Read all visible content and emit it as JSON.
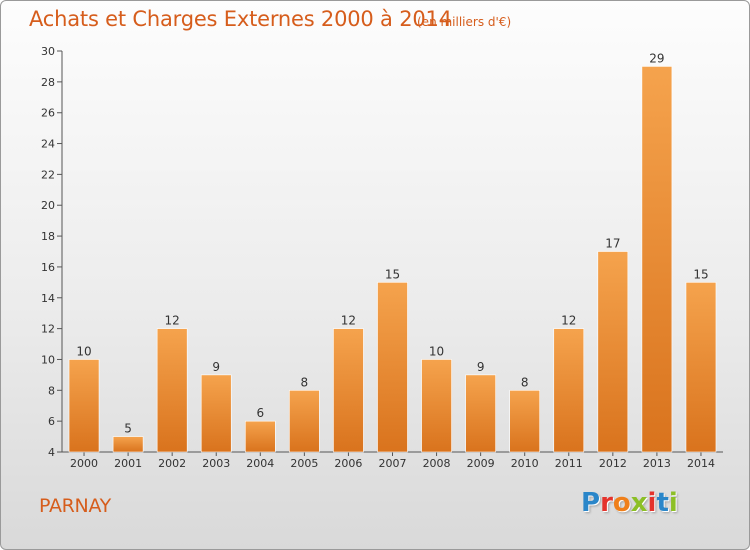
{
  "header": {
    "title": "Achats et Charges Externes 2000 à 2014",
    "subtitle": "(en milliers d'€)"
  },
  "footer": {
    "city": "PARNAY",
    "logo_letters": [
      "P",
      "r",
      "o",
      "x",
      "i",
      "t",
      "i"
    ]
  },
  "colors": {
    "bar_light": "#f5a34d",
    "bar_dark": "#d9731d",
    "text_accent": "#d65d1c"
  },
  "chart_data": {
    "type": "bar",
    "title": "Achats et Charges Externes 2000 à 2014",
    "subtitle": "(en milliers d'€)",
    "categories": [
      "2000",
      "2001",
      "2002",
      "2003",
      "2004",
      "2005",
      "2006",
      "2007",
      "2008",
      "2009",
      "2010",
      "2011",
      "2012",
      "2013",
      "2014"
    ],
    "values": [
      10,
      5,
      12,
      9,
      6,
      8,
      12,
      15,
      10,
      9,
      8,
      12,
      17,
      29,
      15
    ],
    "ylim": [
      4,
      30
    ],
    "yticks": [
      4,
      6,
      8,
      10,
      12,
      14,
      16,
      18,
      20,
      22,
      24,
      26,
      28,
      30
    ],
    "grid": false,
    "legend": "none"
  }
}
